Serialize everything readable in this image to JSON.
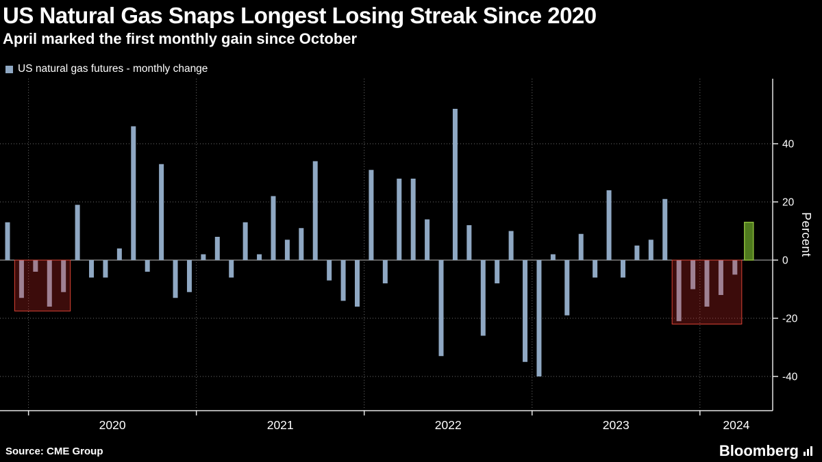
{
  "header": {
    "title": "US Natural Gas Snaps Longest Losing Streak Since 2020",
    "subtitle": "April marked the first monthly gain since October"
  },
  "legend": {
    "label": "US natural gas futures - monthly change",
    "swatch_color": "#8fa8c3"
  },
  "footer": {
    "source": "Source: CME Group",
    "brand": "Bloomberg"
  },
  "chart_data": {
    "type": "bar",
    "title": "US natural gas futures - monthly change",
    "xlabel": "",
    "ylabel": "Percent",
    "ylim": [
      -48,
      62
    ],
    "yticks": [
      40,
      20,
      0,
      -20,
      -40
    ],
    "x_year_ticks": [
      "2020",
      "2021",
      "2022",
      "2023",
      "2024"
    ],
    "grid": "dotted",
    "legend_position": "top-left",
    "colors": {
      "bar": "#8fa8c3",
      "axis": "#e6e6e6",
      "text": "#ffffff",
      "grid_dotted": "#6f6f6f",
      "zero_line": "#bbbbbb",
      "highlight_fill": "rgba(200,40,35,0.30)",
      "highlight_stroke": "rgba(228,70,55,0.95)"
    },
    "gain_bar": {
      "month": "Apr 2024",
      "fill": "#4f7a1e",
      "stroke": "#8ab83a",
      "width": 13
    },
    "highlight_regions": [
      {
        "from": "Dec 2019",
        "to": "Mar 2020",
        "bottom": -17.5
      },
      {
        "from": "Nov 2023",
        "to": "Mar 2024",
        "bottom": -22
      }
    ],
    "series": [
      {
        "month": "Nov 2019",
        "value": 13
      },
      {
        "month": "Dec 2019",
        "value": -13
      },
      {
        "month": "Jan 2020",
        "value": -4
      },
      {
        "month": "Feb 2020",
        "value": -16
      },
      {
        "month": "Mar 2020",
        "value": -11
      },
      {
        "month": "Apr 2020",
        "value": 19
      },
      {
        "month": "May 2020",
        "value": -6
      },
      {
        "month": "Jun 2020",
        "value": -6
      },
      {
        "month": "Jul 2020",
        "value": 4
      },
      {
        "month": "Aug 2020",
        "value": 46
      },
      {
        "month": "Sep 2020",
        "value": -4
      },
      {
        "month": "Oct 2020",
        "value": 33
      },
      {
        "month": "Nov 2020",
        "value": -13
      },
      {
        "month": "Dec 2020",
        "value": -11
      },
      {
        "month": "Jan 2021",
        "value": 2
      },
      {
        "month": "Feb 2021",
        "value": 8
      },
      {
        "month": "Mar 2021",
        "value": -6
      },
      {
        "month": "Apr 2021",
        "value": 13
      },
      {
        "month": "May 2021",
        "value": 2
      },
      {
        "month": "Jun 2021",
        "value": 22
      },
      {
        "month": "Jul 2021",
        "value": 7
      },
      {
        "month": "Aug 2021",
        "value": 11
      },
      {
        "month": "Sep 2021",
        "value": 34
      },
      {
        "month": "Oct 2021",
        "value": -7
      },
      {
        "month": "Nov 2021",
        "value": -14
      },
      {
        "month": "Dec 2021",
        "value": -16
      },
      {
        "month": "Jan 2022",
        "value": 31
      },
      {
        "month": "Feb 2022",
        "value": -8
      },
      {
        "month": "Mar 2022",
        "value": 28
      },
      {
        "month": "Apr 2022",
        "value": 28
      },
      {
        "month": "May 2022",
        "value": 14
      },
      {
        "month": "Jun 2022",
        "value": -33
      },
      {
        "month": "Jul 2022",
        "value": 52
      },
      {
        "month": "Aug 2022",
        "value": 12
      },
      {
        "month": "Sep 2022",
        "value": -26
      },
      {
        "month": "Oct 2022",
        "value": -8
      },
      {
        "month": "Nov 2022",
        "value": 10
      },
      {
        "month": "Dec 2022",
        "value": -35
      },
      {
        "month": "Jan 2023",
        "value": -40
      },
      {
        "month": "Feb 2023",
        "value": 2
      },
      {
        "month": "Mar 2023",
        "value": -19
      },
      {
        "month": "Apr 2023",
        "value": 9
      },
      {
        "month": "May 2023",
        "value": -6
      },
      {
        "month": "Jun 2023",
        "value": 24
      },
      {
        "month": "Jul 2023",
        "value": -6
      },
      {
        "month": "Aug 2023",
        "value": 5
      },
      {
        "month": "Sep 2023",
        "value": 7
      },
      {
        "month": "Oct 2023",
        "value": 21
      },
      {
        "month": "Nov 2023",
        "value": -21
      },
      {
        "month": "Dec 2023",
        "value": -10
      },
      {
        "month": "Jan 2024",
        "value": -16
      },
      {
        "month": "Feb 2024",
        "value": -12
      },
      {
        "month": "Mar 2024",
        "value": -5
      },
      {
        "month": "Apr 2024",
        "value": 13
      }
    ]
  }
}
